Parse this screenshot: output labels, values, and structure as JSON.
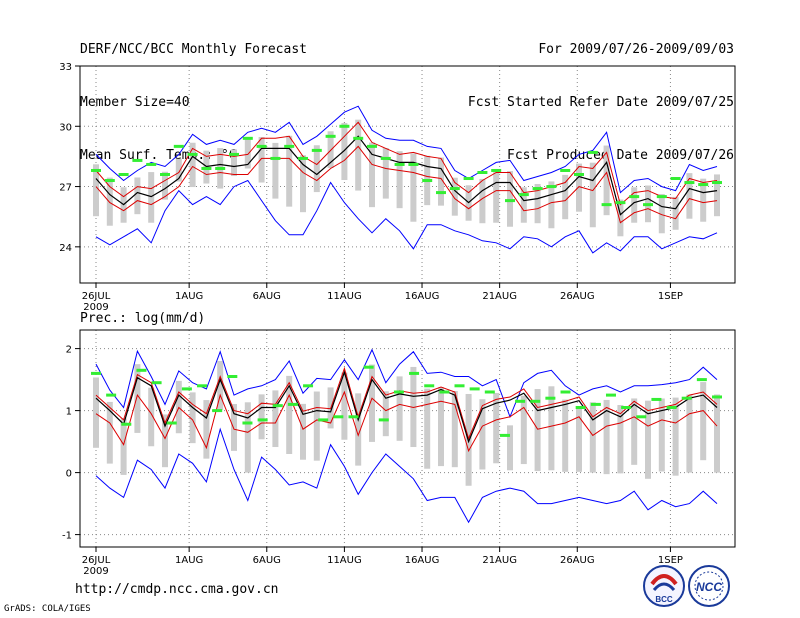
{
  "header": {
    "title": "DERF/NCC/BCC Monthly Forecast",
    "member_size": "Member Size=40",
    "variable": "Mean Surf. Temp.: °C",
    "period": "For 2009/07/26-2009/09/03",
    "refer_date": "Fcst Started Refer Date 2009/07/25",
    "produced_date": "Fcst Produced Date 2009/07/26"
  },
  "footer": {
    "url": "http://cmdp.ncc.cma.gov.cn",
    "credit": "GrADS: COLA/IGES",
    "logo_left_text": "BCC",
    "logo_right_text": "NCC"
  },
  "colors": {
    "envelope": "#0000ff",
    "ci": "#dd0000",
    "mean": "#000000",
    "ensemble": "#cccccc",
    "obs": "#33ee33"
  },
  "chart_data": [
    {
      "type": "line",
      "title": "Mean Surf. Temp.: °C",
      "ylabel": "°C",
      "ylim": [
        22.2,
        33
      ],
      "yticks": [
        24,
        27,
        30,
        33
      ],
      "x_tick_labels": [
        "26JUL",
        "1AUG",
        "6AUG",
        "11AUG",
        "16AUG",
        "21AUG",
        "26AUG",
        "1SEP"
      ],
      "x_tick_days": [
        0,
        6,
        11,
        16,
        21,
        26,
        31,
        37
      ],
      "x_sub_label": "2009",
      "days": 40,
      "series": [
        {
          "name": "max",
          "values": [
            28.6,
            27.9,
            27.3,
            27.8,
            28.2,
            28.0,
            28.6,
            29.6,
            29.1,
            29.3,
            29.1,
            29.7,
            29.9,
            29.7,
            30.2,
            29.1,
            29.5,
            30.1,
            30.7,
            31.0,
            29.8,
            29.4,
            29.3,
            29.3,
            29.0,
            28.9,
            27.8,
            27.4,
            27.8,
            28.2,
            28.3,
            27.3,
            27.5,
            27.7,
            28.0,
            28.6,
            28.8,
            29.7,
            26.7,
            27.3,
            27.4,
            27.0,
            26.8,
            28.1,
            27.8,
            28.0
          ]
        },
        {
          "name": "ci_upper",
          "values": [
            27.8,
            27.0,
            26.5,
            27.0,
            26.9,
            27.3,
            27.7,
            28.9,
            28.5,
            28.6,
            28.5,
            28.6,
            29.4,
            29.4,
            29.5,
            28.5,
            28.1,
            28.8,
            29.5,
            30.2,
            29.2,
            28.9,
            28.6,
            28.7,
            28.5,
            28.4,
            27.2,
            26.7,
            27.3,
            27.7,
            27.7,
            26.7,
            26.8,
            27.0,
            27.2,
            28.0,
            27.9,
            28.7,
            26.1,
            26.7,
            26.8,
            26.5,
            26.4,
            27.4,
            27.2,
            27.3
          ]
        },
        {
          "name": "ensemble_mean",
          "values": [
            27.4,
            26.6,
            26.1,
            26.7,
            26.5,
            26.9,
            27.4,
            28.5,
            28.0,
            28.1,
            28.0,
            28.1,
            28.9,
            28.9,
            28.9,
            28.1,
            27.6,
            28.2,
            28.8,
            29.5,
            28.6,
            28.4,
            28.2,
            28.2,
            28.0,
            27.9,
            26.8,
            26.2,
            26.8,
            27.2,
            27.2,
            26.3,
            26.4,
            26.6,
            26.8,
            27.5,
            27.3,
            28.2,
            25.6,
            26.2,
            26.4,
            26.0,
            25.9,
            26.9,
            26.7,
            26.8
          ]
        },
        {
          "name": "ci_lower",
          "values": [
            27.0,
            26.2,
            25.8,
            26.3,
            26.1,
            26.5,
            27.0,
            28.0,
            27.6,
            27.7,
            27.6,
            27.6,
            28.4,
            28.4,
            28.4,
            27.7,
            27.3,
            27.9,
            28.3,
            29.0,
            28.1,
            27.9,
            27.8,
            27.7,
            27.5,
            27.4,
            26.4,
            25.9,
            26.4,
            26.8,
            26.8,
            25.8,
            25.9,
            26.2,
            26.3,
            27.0,
            26.8,
            27.7,
            25.2,
            25.7,
            25.9,
            25.6,
            25.4,
            26.4,
            26.2,
            26.3
          ]
        },
        {
          "name": "min",
          "values": [
            24.5,
            24.1,
            24.5,
            24.9,
            24.2,
            25.8,
            26.8,
            26.1,
            26.5,
            26.1,
            27.0,
            27.3,
            26.3,
            25.3,
            24.6,
            24.6,
            25.8,
            27.2,
            26.2,
            25.4,
            24.7,
            25.4,
            24.8,
            23.9,
            25.1,
            25.1,
            24.8,
            24.6,
            24.3,
            24.2,
            23.9,
            24.5,
            24.4,
            24.0,
            24.5,
            24.8,
            23.7,
            24.2,
            23.8,
            24.5,
            24.5,
            23.9,
            24.2,
            24.5,
            24.4,
            24.7
          ]
        }
      ],
      "observed_like_marks": [
        27.8,
        27.3,
        27.6,
        28.3,
        28.1,
        27.6,
        29.0,
        28.6,
        27.9,
        27.9,
        28.6,
        29.4,
        29.0,
        28.4,
        29.0,
        28.4,
        28.8,
        29.5,
        30.0,
        29.4,
        29.0,
        28.4,
        28.1,
        28.1,
        27.3,
        26.7,
        26.9,
        27.4,
        27.7,
        27.8,
        26.3,
        26.6,
        26.9,
        27.0,
        27.8,
        27.6,
        28.7,
        26.1,
        26.2,
        26.5,
        26.1,
        26.5,
        27.4,
        27.2,
        27.1,
        27.2
      ],
      "legend": "none"
    },
    {
      "type": "line",
      "title": "Prec.: log(mm/d)",
      "ylabel": "log(mm/d)",
      "ylim": [
        -1.2,
        2.3
      ],
      "yticks": [
        -1,
        0,
        1,
        2
      ],
      "x_tick_labels": [
        "26JUL",
        "1AUG",
        "6AUG",
        "11AUG",
        "16AUG",
        "21AUG",
        "26AUG",
        "1SEP"
      ],
      "x_tick_days": [
        0,
        6,
        11,
        16,
        21,
        26,
        31,
        37
      ],
      "x_sub_label": "2009",
      "days": 40,
      "series": [
        {
          "name": "max",
          "values": [
            1.75,
            1.33,
            1.05,
            1.96,
            1.55,
            1.1,
            1.64,
            1.45,
            1.35,
            1.95,
            1.25,
            1.35,
            1.4,
            1.5,
            1.8,
            1.28,
            1.52,
            1.5,
            1.82,
            1.5,
            1.98,
            1.45,
            1.75,
            1.95,
            1.6,
            1.62,
            1.55,
            1.55,
            1.4,
            1.5,
            0.9,
            1.45,
            1.6,
            1.65,
            1.4,
            1.25,
            1.35,
            1.4,
            1.3,
            1.4,
            1.4,
            1.42,
            1.45,
            1.5,
            1.7,
            1.5
          ]
        },
        {
          "name": "ci_upper",
          "values": [
            1.25,
            1.05,
            0.85,
            1.58,
            1.45,
            0.8,
            1.3,
            1.1,
            0.95,
            1.55,
            1.0,
            0.95,
            1.12,
            1.1,
            1.45,
            0.99,
            1.05,
            1.03,
            1.68,
            0.9,
            1.55,
            1.25,
            1.32,
            1.28,
            1.3,
            1.38,
            1.3,
            0.55,
            1.08,
            1.18,
            1.22,
            1.35,
            1.05,
            1.1,
            1.15,
            1.22,
            0.9,
            1.05,
            0.95,
            1.15,
            1.0,
            1.05,
            1.1,
            1.25,
            1.3,
            1.1
          ]
        },
        {
          "name": "ensemble_mean",
          "values": [
            1.2,
            1.0,
            0.78,
            1.53,
            1.4,
            0.75,
            1.25,
            1.05,
            0.88,
            1.5,
            0.95,
            0.88,
            1.05,
            1.05,
            1.4,
            0.94,
            1.0,
            0.98,
            1.62,
            0.85,
            1.5,
            1.2,
            1.27,
            1.23,
            1.25,
            1.34,
            1.25,
            0.5,
            1.03,
            1.12,
            1.17,
            1.28,
            1.0,
            1.05,
            1.1,
            1.16,
            0.85,
            1.0,
            0.9,
            1.1,
            0.95,
            1.0,
            1.05,
            1.2,
            1.25,
            1.05
          ]
        },
        {
          "name": "ci_lower",
          "values": [
            0.95,
            0.8,
            0.45,
            1.25,
            0.95,
            0.55,
            1.05,
            0.85,
            0.4,
            1.25,
            0.7,
            0.65,
            0.8,
            0.8,
            1.25,
            0.7,
            0.85,
            0.8,
            1.3,
            0.6,
            1.2,
            1.0,
            1.1,
            1.05,
            1.1,
            1.15,
            1.1,
            0.35,
            0.75,
            0.85,
            0.9,
            1.05,
            0.7,
            0.75,
            0.8,
            0.9,
            0.6,
            0.75,
            0.8,
            0.9,
            0.75,
            0.85,
            0.8,
            0.95,
            1.0,
            0.75
          ]
        },
        {
          "name": "min",
          "values": [
            -0.05,
            -0.25,
            -0.4,
            0.2,
            0.05,
            -0.25,
            0.3,
            0.15,
            -0.15,
            0.7,
            0.05,
            -0.45,
            0.25,
            0.05,
            -0.2,
            -0.15,
            -0.25,
            0.45,
            0.1,
            -0.35,
            0.0,
            0.3,
            0.1,
            -0.1,
            -0.45,
            -0.4,
            -0.4,
            -0.8,
            -0.4,
            -0.3,
            -0.25,
            -0.3,
            -0.5,
            -0.5,
            -0.45,
            -0.4,
            -0.45,
            -0.5,
            -0.45,
            -0.3,
            -0.6,
            -0.45,
            -0.55,
            -0.5,
            -0.3,
            -0.5
          ]
        }
      ],
      "observed_like_marks": [
        1.6,
        1.25,
        0.78,
        1.65,
        1.45,
        0.8,
        1.35,
        1.4,
        1.0,
        1.55,
        0.8,
        0.85,
        1.08,
        1.1,
        1.4,
        0.85,
        0.9,
        0.9,
        1.7,
        0.85,
        1.3,
        1.6,
        1.4,
        1.3,
        1.4,
        1.35,
        1.3,
        0.6,
        1.15,
        1.15,
        1.2,
        1.3,
        1.05,
        1.1,
        1.25,
        1.05,
        0.9,
        1.18,
        1.05,
        1.2,
        1.5,
        1.22
      ],
      "legend": "none"
    }
  ]
}
